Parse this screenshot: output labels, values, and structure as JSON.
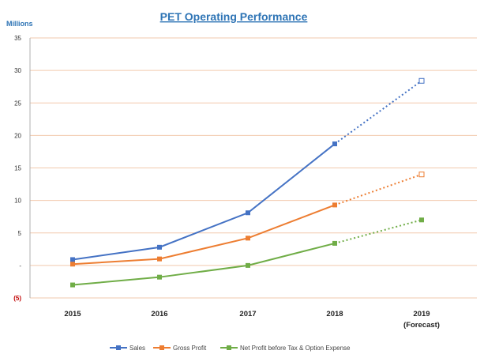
{
  "chart_data": {
    "type": "line",
    "title": "PET Operating Performance",
    "unit_label": "Millions",
    "xlabel": "",
    "ylabel": "",
    "ylim": [
      -5,
      35
    ],
    "yticks": [
      {
        "value": 35,
        "label": "35"
      },
      {
        "value": 30,
        "label": "30"
      },
      {
        "value": 25,
        "label": "25"
      },
      {
        "value": 20,
        "label": "20"
      },
      {
        "value": 15,
        "label": "15"
      },
      {
        "value": 10,
        "label": "10"
      },
      {
        "value": 5,
        "label": "5"
      },
      {
        "value": 0,
        "label": "-"
      },
      {
        "value": -5,
        "label": "(5)"
      }
    ],
    "categories": [
      {
        "line1": "2015",
        "line2": ""
      },
      {
        "line1": "2016",
        "line2": ""
      },
      {
        "line1": "2017",
        "line2": ""
      },
      {
        "line1": "2018",
        "line2": ""
      },
      {
        "line1": "2019",
        "line2": "(Forecast)"
      }
    ],
    "forecast_index": 4,
    "grid": true,
    "legend_position": "bottom",
    "series": [
      {
        "name": "Sales",
        "color": "#4472c4",
        "values": [
          0.9,
          2.8,
          8.1,
          18.7,
          28.4
        ]
      },
      {
        "name": "Gross Profit",
        "color": "#ed7d31",
        "values": [
          0.2,
          1.0,
          4.2,
          9.3,
          14.0
        ]
      },
      {
        "name": "Net Profit before Tax & Option Expense",
        "color": "#70ad47",
        "values": [
          -3.0,
          -1.8,
          0.0,
          3.4,
          7.0
        ]
      }
    ]
  }
}
